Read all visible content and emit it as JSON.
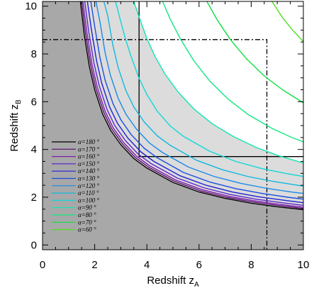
{
  "chart_data": {
    "type": "line",
    "xlabel": "Redshift z",
    "xlabel_sub": "A",
    "ylabel": "Redshift z",
    "ylabel_sub": "B",
    "xlim": [
      0,
      10
    ],
    "ylim": [
      -0.2,
      10.2
    ],
    "xticks": [
      0,
      2,
      4,
      6,
      8,
      10
    ],
    "yticks": [
      0,
      2,
      4,
      6,
      8,
      10
    ],
    "grid": false,
    "legend_position": "bottom-left",
    "series": [
      {
        "name": "α=180 °",
        "alpha_deg": 180,
        "color": "#000000",
        "x": [
          1.45,
          1.6,
          1.8,
          2.0,
          2.3,
          2.6,
          3.0,
          3.5,
          4.0,
          5.0,
          6.0,
          7.0,
          8.0,
          9.0,
          10.0
        ],
        "y": [
          10.2,
          8.8,
          7.45,
          6.5,
          5.5,
          4.82,
          4.2,
          3.62,
          3.22,
          2.62,
          2.22,
          1.95,
          1.75,
          1.6,
          1.48
        ]
      },
      {
        "name": "α=170 °",
        "alpha_deg": 170,
        "color": "#5a0a6e",
        "x": [
          1.5,
          1.65,
          1.85,
          2.05,
          2.35,
          2.65,
          3.05,
          3.55,
          4.05,
          5.05,
          6.05,
          7.05,
          8.05,
          9.05,
          10.0
        ],
        "y": [
          10.2,
          8.85,
          7.5,
          6.55,
          5.55,
          4.87,
          4.25,
          3.67,
          3.27,
          2.67,
          2.27,
          2.0,
          1.8,
          1.65,
          1.53
        ]
      },
      {
        "name": "α=160 °",
        "alpha_deg": 160,
        "color": "#7a1ea8",
        "x": [
          1.55,
          1.7,
          1.9,
          2.1,
          2.4,
          2.7,
          3.1,
          3.6,
          4.1,
          5.1,
          6.1,
          7.1,
          8.1,
          9.1,
          10.0
        ],
        "y": [
          10.2,
          8.9,
          7.55,
          6.6,
          5.6,
          4.92,
          4.3,
          3.72,
          3.32,
          2.72,
          2.32,
          2.05,
          1.85,
          1.7,
          1.58
        ]
      },
      {
        "name": "α=150 °",
        "alpha_deg": 150,
        "color": "#5a28c8",
        "x": [
          1.62,
          1.77,
          1.97,
          2.17,
          2.47,
          2.77,
          3.17,
          3.67,
          4.17,
          5.17,
          6.17,
          7.17,
          8.17,
          9.17,
          10.0
        ],
        "y": [
          10.2,
          8.95,
          7.62,
          6.68,
          5.68,
          5.0,
          4.38,
          3.8,
          3.4,
          2.8,
          2.4,
          2.12,
          1.92,
          1.77,
          1.66
        ]
      },
      {
        "name": "α=140 °",
        "alpha_deg": 140,
        "color": "#2020d0",
        "x": [
          1.72,
          1.87,
          2.07,
          2.27,
          2.57,
          2.87,
          3.27,
          3.77,
          4.27,
          5.27,
          6.27,
          7.27,
          8.27,
          9.27,
          10.0
        ],
        "y": [
          10.2,
          9.05,
          7.72,
          6.78,
          5.78,
          5.1,
          4.48,
          3.9,
          3.5,
          2.9,
          2.5,
          2.22,
          2.02,
          1.87,
          1.77
        ]
      },
      {
        "name": "α=130 °",
        "alpha_deg": 130,
        "color": "#1a4ee0",
        "x": [
          1.85,
          2.0,
          2.2,
          2.4,
          2.7,
          3.0,
          3.4,
          3.9,
          4.4,
          5.4,
          6.4,
          7.4,
          8.4,
          9.4,
          10.0
        ],
        "y": [
          10.2,
          9.15,
          7.85,
          6.9,
          5.92,
          5.25,
          4.62,
          4.05,
          3.65,
          3.04,
          2.64,
          2.36,
          2.16,
          2.0,
          1.92
        ]
      },
      {
        "name": "α=120 °",
        "alpha_deg": 120,
        "color": "#1a8ae8",
        "x": [
          2.05,
          2.2,
          2.4,
          2.6,
          2.9,
          3.2,
          3.6,
          4.1,
          4.6,
          5.6,
          6.6,
          7.6,
          8.6,
          9.6,
          10.0
        ],
        "y": [
          10.2,
          9.35,
          8.05,
          7.12,
          6.14,
          5.47,
          4.85,
          4.27,
          3.87,
          3.26,
          2.86,
          2.58,
          2.37,
          2.21,
          2.16
        ]
      },
      {
        "name": "α=110 °",
        "alpha_deg": 110,
        "color": "#10b8e0",
        "x": [
          2.35,
          2.5,
          2.7,
          2.9,
          3.2,
          3.5,
          3.9,
          4.4,
          4.9,
          5.9,
          6.9,
          7.9,
          8.9,
          9.9,
          10.0
        ],
        "y": [
          10.2,
          9.6,
          8.35,
          7.43,
          6.45,
          5.78,
          5.15,
          4.57,
          4.17,
          3.55,
          3.15,
          2.86,
          2.65,
          2.48,
          2.47
        ]
      },
      {
        "name": "α=100 °",
        "alpha_deg": 100,
        "color": "#10d8d8",
        "x": [
          2.8,
          3.0,
          3.2,
          3.4,
          3.7,
          4.0,
          4.4,
          4.9,
          5.4,
          6.4,
          7.4,
          8.4,
          9.4,
          10.0
        ],
        "y": [
          10.2,
          9.35,
          8.55,
          7.88,
          6.98,
          6.3,
          5.6,
          4.98,
          4.55,
          3.93,
          3.5,
          3.2,
          2.98,
          2.87
        ]
      },
      {
        "name": "α=90 °",
        "alpha_deg": 90,
        "color": "#10e8b0",
        "x": [
          3.5,
          3.7,
          4.0,
          4.3,
          4.7,
          5.2,
          5.8,
          6.5,
          7.3,
          8.2,
          9.1,
          10.0
        ],
        "y": [
          10.2,
          9.55,
          8.65,
          7.92,
          7.15,
          6.4,
          5.7,
          5.08,
          4.55,
          4.08,
          3.72,
          3.43
        ]
      },
      {
        "name": "α=80 °",
        "alpha_deg": 80,
        "color": "#10e880",
        "x": [
          4.6,
          4.9,
          5.3,
          5.8,
          6.4,
          7.1,
          7.9,
          8.8,
          9.6,
          10.0
        ],
        "y": [
          10.2,
          9.45,
          8.6,
          7.72,
          6.88,
          6.12,
          5.45,
          4.88,
          4.48,
          4.32
        ]
      },
      {
        "name": "α=70 °",
        "alpha_deg": 70,
        "color": "#10e040",
        "x": [
          6.3,
          6.7,
          7.2,
          7.8,
          8.5,
          9.2,
          10.0
        ],
        "y": [
          10.2,
          9.42,
          8.6,
          7.82,
          7.08,
          6.5,
          5.95
        ]
      },
      {
        "name": "α=60 °",
        "alpha_deg": 60,
        "color": "#50e020",
        "x": [
          8.8,
          9.2,
          9.6,
          10.0
        ],
        "y": [
          10.2,
          9.52,
          8.98,
          8.52
        ]
      }
    ],
    "reference_lines": [
      {
        "style": "solid",
        "x": [
          3.7,
          3.7,
          10.0
        ],
        "y": [
          10.2,
          3.7,
          3.7
        ]
      },
      {
        "style": "dash-dot",
        "x": [
          0.0,
          8.6,
          8.6
        ],
        "y": [
          8.6,
          8.6,
          -0.2
        ]
      }
    ],
    "shading": {
      "dark_region_color": "#a8a8a8",
      "light_region_color": "#dcdcdc"
    }
  }
}
